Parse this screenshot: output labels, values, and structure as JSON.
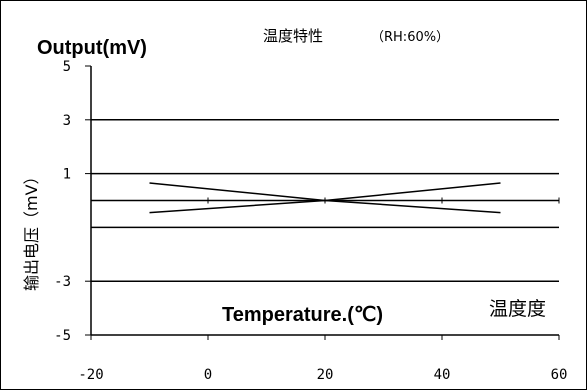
{
  "chart_data": {
    "type": "line",
    "title": "温度特性",
    "subtitle": "（RH:60%）",
    "corner_label": "Output(mV)",
    "ylabel": "输出电压（mV）",
    "xlabel": "Temperature.(℃)",
    "xlabel_cn": "温度度",
    "xlim": [
      -20,
      60
    ],
    "ylim": [
      -5,
      5
    ],
    "x_ticks": [
      "-20",
      "0",
      "20",
      "40",
      "60"
    ],
    "y_ticks": [
      "5",
      "3",
      "1",
      "-3",
      "-5"
    ],
    "grid_y": [
      3,
      1,
      0,
      -1,
      -3
    ],
    "grid": true,
    "series": [
      {
        "x": [
          -10,
          20,
          50
        ],
        "y": [
          0.65,
          0.0,
          -0.45
        ]
      },
      {
        "x": [
          -10,
          20,
          50
        ],
        "y": [
          -0.45,
          0.0,
          0.65
        ]
      }
    ],
    "line_color": "#000000"
  }
}
